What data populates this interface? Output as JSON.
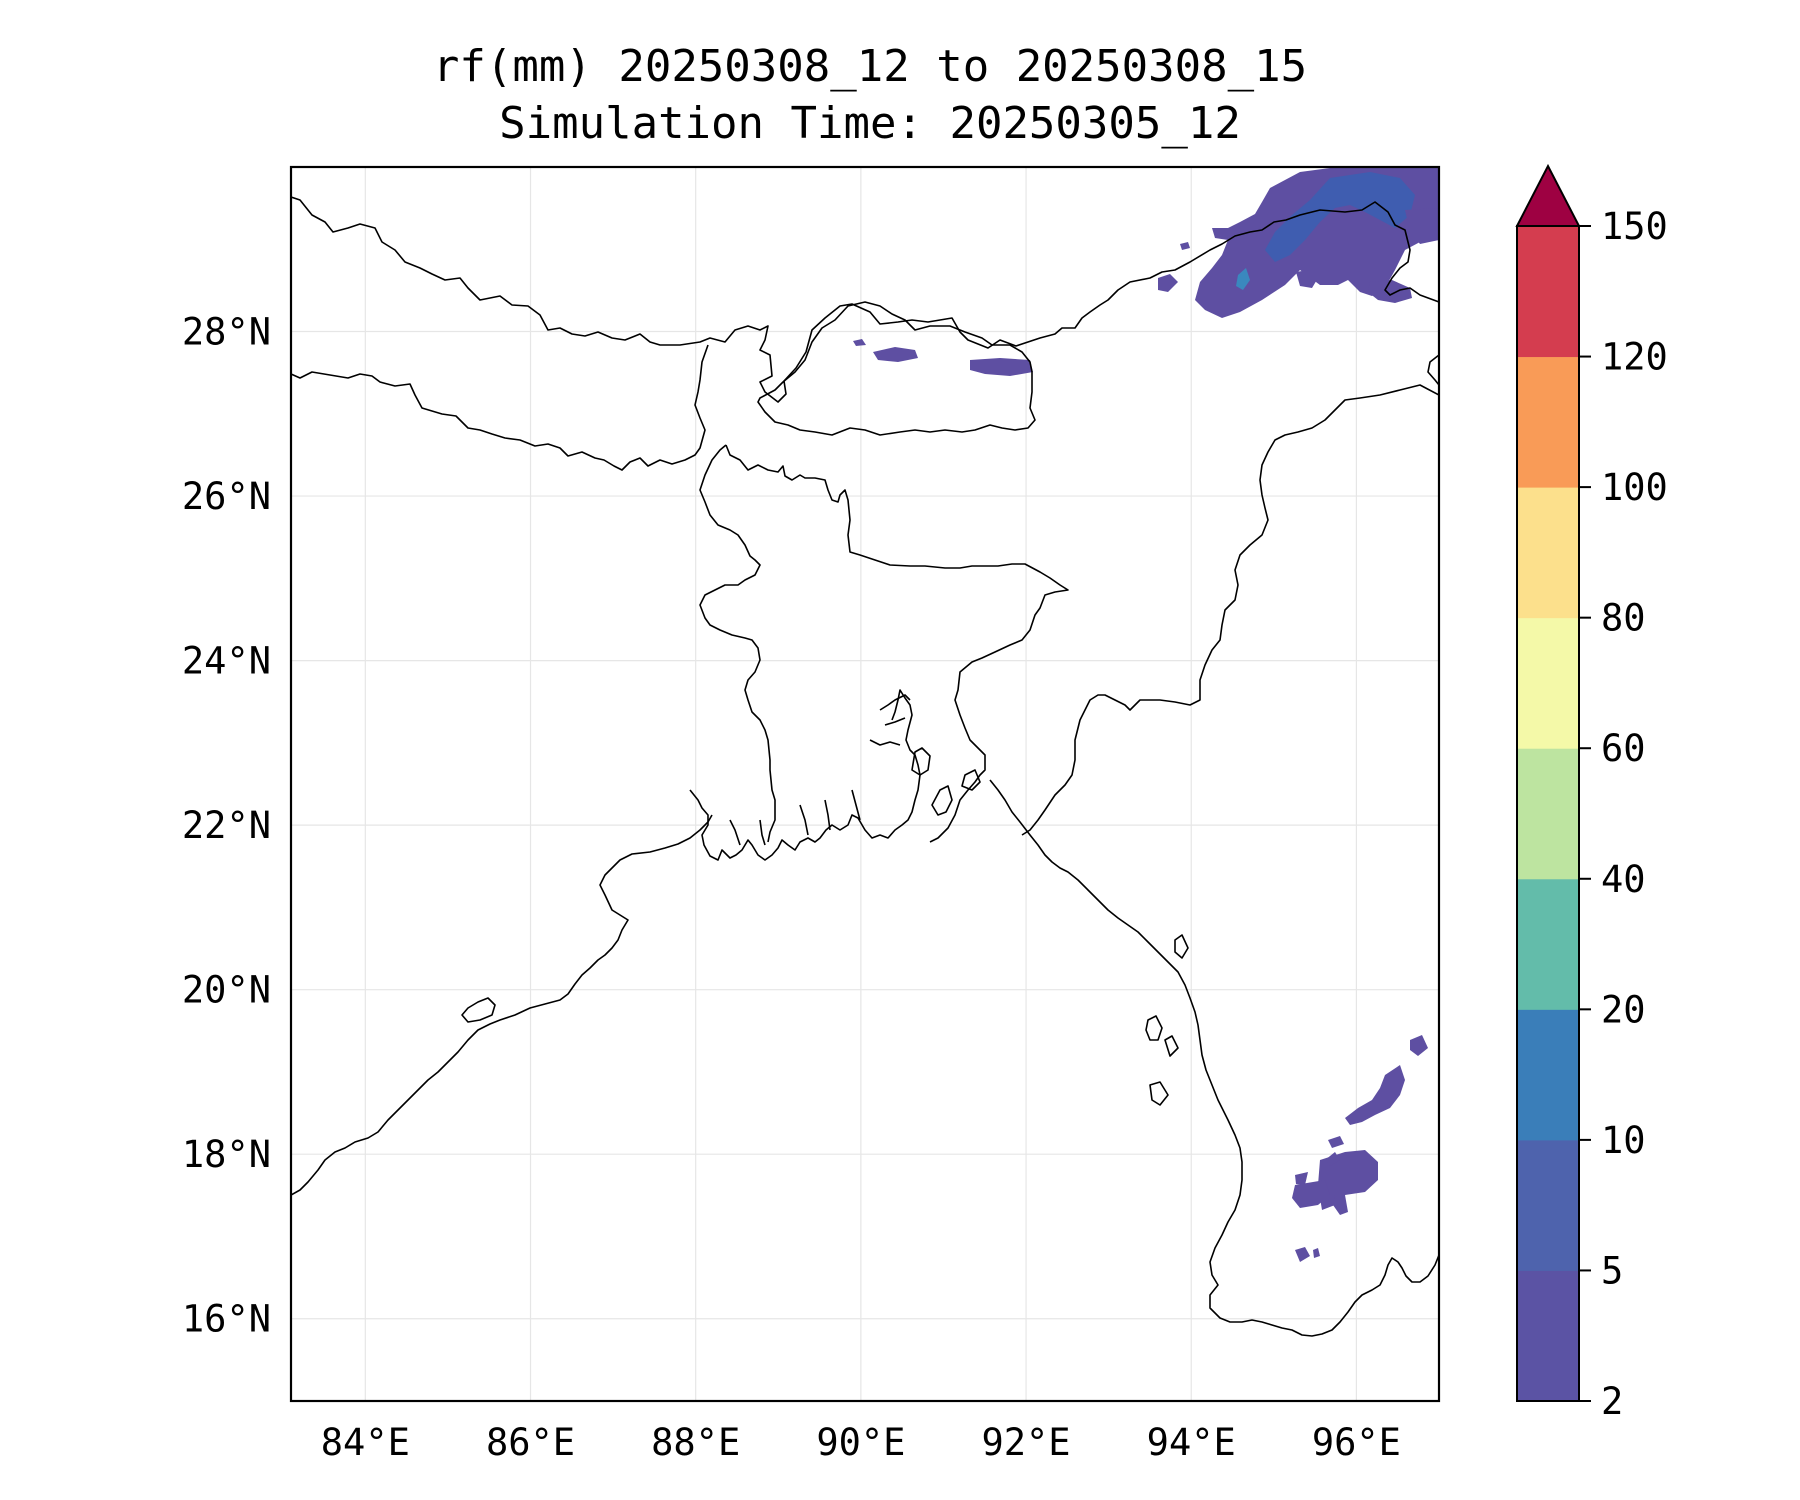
{
  "title": {
    "line1": "rf(mm) 20250308_12 to 20250308_15",
    "line2": "Simulation Time: 20250305_12"
  },
  "map": {
    "lon_range": [
      83.1,
      97.0
    ],
    "lat_range": [
      15.0,
      30.0
    ],
    "x_ticks": [
      {
        "value": 84,
        "label": "84°E"
      },
      {
        "value": 86,
        "label": "86°E"
      },
      {
        "value": 88,
        "label": "88°E"
      },
      {
        "value": 90,
        "label": "90°E"
      },
      {
        "value": 92,
        "label": "92°E"
      },
      {
        "value": 94,
        "label": "94°E"
      },
      {
        "value": 96,
        "label": "96°E"
      }
    ],
    "y_ticks": [
      {
        "value": 16,
        "label": "16°N"
      },
      {
        "value": 18,
        "label": "18°N"
      },
      {
        "value": 20,
        "label": "20°N"
      },
      {
        "value": 22,
        "label": "22°N"
      },
      {
        "value": 24,
        "label": "24°N"
      },
      {
        "value": 26,
        "label": "26°N"
      },
      {
        "value": 28,
        "label": "28°N"
      }
    ],
    "gridlines": true,
    "gridline_color": "#e6e6e6",
    "coastline_color": "#000000",
    "rain_color_light": "#5E4FA2",
    "rain_color_mid": "#3F5DB0",
    "rain_color_10_20": "#3A88BE"
  },
  "colorbar": {
    "boundaries": [
      2,
      5,
      10,
      20,
      40,
      60,
      80,
      100,
      120,
      150
    ],
    "tick_labels": [
      "2",
      "5",
      "10",
      "20",
      "40",
      "60",
      "80",
      "100",
      "120",
      "150"
    ],
    "colors": [
      "#5B53A4",
      "#4E63AD",
      "#3A7EB9",
      "#63BCAA",
      "#BDE4A0",
      "#F4F9A8",
      "#FCE08C",
      "#F99B57",
      "#D43D4F"
    ],
    "extend_color": "#9E0142",
    "extend": "max"
  }
}
